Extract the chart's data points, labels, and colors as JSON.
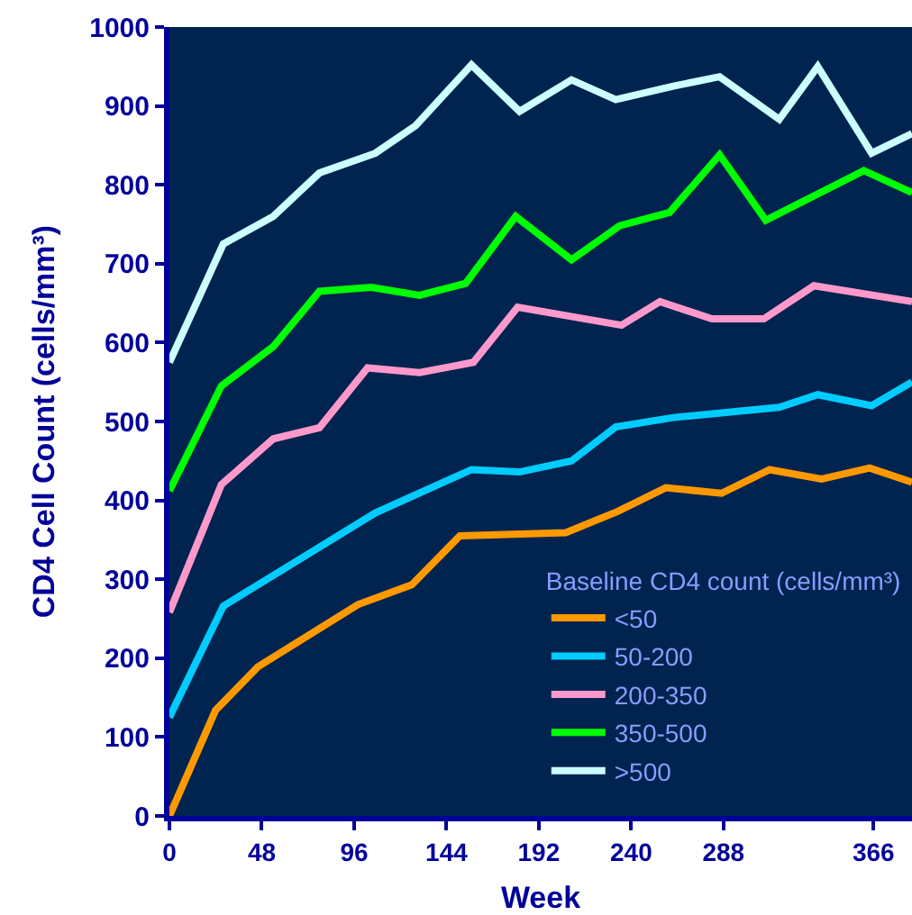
{
  "chart_data": {
    "type": "line",
    "xlabel": "Week",
    "ylabel": "CD4 Cell Count (cells/mm³)",
    "legend_title": "Baseline CD4 count (cells/mm³)",
    "legend": "bottom right",
    "grid": false,
    "marker": "none",
    "line_style": "solid",
    "xlim": [
      0,
      386
    ],
    "xticks": [
      0,
      48,
      96,
      144,
      192,
      240,
      288,
      366
    ],
    "ylim": [
      0,
      1000
    ],
    "yticks": [
      0,
      100,
      200,
      300,
      400,
      500,
      600,
      700,
      800,
      900,
      1000
    ],
    "series": [
      {
        "name": "<50",
        "color": "#ff9900",
        "x": [
          0,
          24,
          46,
          98,
          126,
          151,
          206,
          233,
          258,
          287,
          312,
          339,
          364,
          386
        ],
        "values": [
          0,
          134,
          189,
          268,
          293,
          355,
          359,
          386,
          416,
          409,
          439,
          427,
          441,
          423
        ]
      },
      {
        "name": "50-200",
        "color": "#00ccff",
        "x": [
          0,
          28,
          107,
          157,
          182,
          209,
          232,
          262,
          317,
          337,
          365,
          386
        ],
        "values": [
          125,
          266,
          384,
          439,
          436,
          450,
          493,
          505,
          518,
          534,
          520,
          550
        ]
      },
      {
        "name": "200-350",
        "color": "#ff99cc",
        "x": [
          0,
          27,
          54,
          78,
          103,
          130,
          158,
          181,
          235,
          255,
          282,
          309,
          335,
          386
        ],
        "values": [
          258,
          420,
          478,
          492,
          568,
          562,
          575,
          645,
          622,
          652,
          630,
          630,
          672,
          652
        ]
      },
      {
        "name": "350-500",
        "color": "#00ff00",
        "x": [
          0,
          27,
          54,
          78,
          105,
          130,
          154,
          180,
          209,
          234,
          260,
          286,
          310,
          361,
          386
        ],
        "values": [
          412,
          545,
          595,
          665,
          670,
          660,
          675,
          760,
          705,
          748,
          765,
          838,
          755,
          818,
          790
        ]
      },
      {
        "name": ">500",
        "color": "#ccffff",
        "x": [
          0,
          28,
          54,
          78,
          107,
          128,
          157,
          182,
          209,
          232,
          262,
          286,
          317,
          337,
          365,
          386
        ],
        "values": [
          575,
          725,
          760,
          815,
          840,
          875,
          952,
          893,
          933,
          908,
          925,
          937,
          883,
          950,
          840,
          865
        ]
      }
    ]
  }
}
